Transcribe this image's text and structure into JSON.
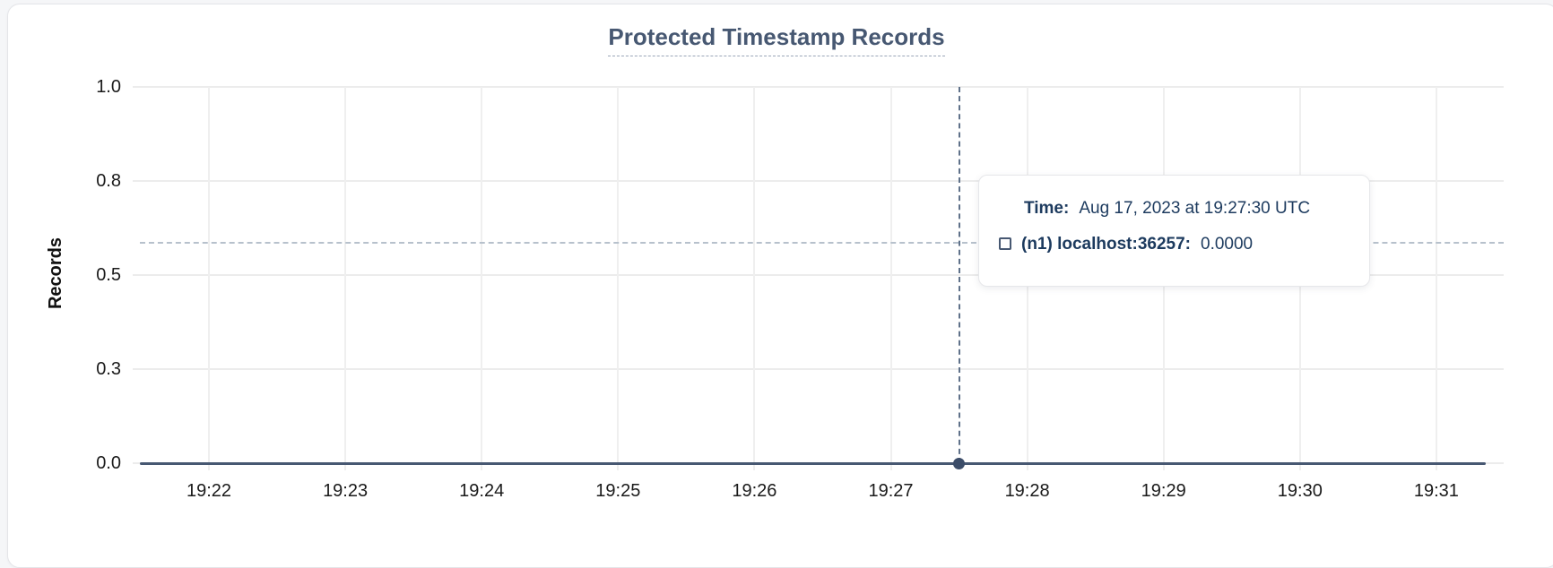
{
  "card": {
    "title": "Protected Timestamp Records"
  },
  "chart_data": {
    "type": "line",
    "title": "Protected Timestamp Records",
    "xlabel": "",
    "ylabel": "Records",
    "x_ticks": [
      "19:22",
      "19:23",
      "19:24",
      "19:25",
      "19:26",
      "19:27",
      "19:28",
      "19:29",
      "19:30",
      "19:31"
    ],
    "y_tick_labels": [
      "1.0",
      "0.8",
      "0.5",
      "0.3",
      "0.0"
    ],
    "y_tick_values": [
      1.0,
      0.75,
      0.5,
      0.25,
      0.0
    ],
    "ylim": [
      0,
      1.0
    ],
    "grid": true,
    "legend_position": "tooltip",
    "series": [
      {
        "name": "(n1) localhost:36257",
        "color": "#475872",
        "values": [
          0,
          0,
          0,
          0,
          0,
          0,
          0,
          0,
          0,
          0
        ]
      }
    ],
    "hover_point": {
      "time": "19:27:30",
      "value": 0
    }
  },
  "tooltip": {
    "time_label": "Time:",
    "time_value": "Aug 17, 2023 at 19:27:30 UTC",
    "series_label": "(n1) localhost:36257:",
    "series_value": "0.0000"
  },
  "colors": {
    "title_text": "#475872",
    "tooltip_text": "#1c3a5e",
    "series_line": "#475872",
    "hover_dot": "#3c4d69",
    "gridline": "#ececec",
    "crosshair_vertical": "#5f7189",
    "crosshair_horizontal": "#b7c1cc",
    "axis_text": "#1a1a1a",
    "card_border": "#e4e5e9"
  }
}
